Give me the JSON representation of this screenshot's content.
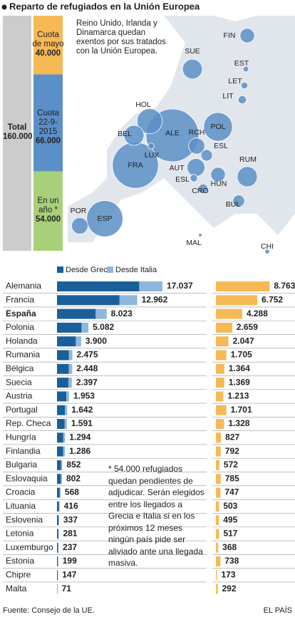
{
  "title": "Reparto de refugiados en la Unión Europea",
  "chart_data": [
    {
      "type": "stacked-column",
      "total": {
        "name": "Total",
        "value": 160000,
        "value_label": "160.000",
        "color": "#cccccc"
      },
      "segments": [
        {
          "name": "Cuota de mayo",
          "value": 40000,
          "value_label": "40.000",
          "color": "#f6b955"
        },
        {
          "name": "Cuota 22-9-2015",
          "value": 66000,
          "value_label": "66.000",
          "color": "#5b8fc7"
        },
        {
          "name": "En un año *",
          "value": 54000,
          "value_label": "54.000",
          "color": "#a8cf7a"
        }
      ],
      "ylim": [
        0,
        160000
      ]
    },
    {
      "type": "bubble-map",
      "note": "Reino Unido, Irlanda y Dinamarca quedan exentos por sus tratados con la Unión Europea.",
      "codes": [
        "ALE",
        "FRA",
        "ESP",
        "POL",
        "HOL",
        "RUM",
        "BEL",
        "SUE",
        "AUT",
        "POR",
        "RCH",
        "HUN",
        "FIN",
        "BUL",
        "ESL",
        "CRO",
        "LIT",
        "ESL",
        "LET",
        "LUX",
        "EST",
        "CHI",
        "MAL"
      ],
      "color": "#5b8fc7"
    },
    {
      "type": "hbar-stacked",
      "categories": [
        "Alemania",
        "Francia",
        "España",
        "Polonia",
        "Holanda",
        "Rumania",
        "Bélgica",
        "Suecia",
        "Austria",
        "Portugal",
        "Rep. Checa",
        "Hungría",
        "Finlandia",
        "Bulgaria",
        "Eslovaquia",
        "Croacia",
        "Lituania",
        "Eslovenia",
        "Letonia",
        "Luxemburgo",
        "Estonia",
        "Chipre",
        "Malta"
      ],
      "series": [
        {
          "name": "Desde Grecia",
          "color": "#1b5f9a",
          "values": [
            13286,
            10108,
            6256,
            3963,
            3041,
            1930,
            1909,
            1869,
            1523,
            1280,
            1241,
            1009,
            1003,
            664,
            625,
            443,
            324,
            263,
            219,
            185,
            155,
            115,
            55
          ]
        },
        {
          "name": "Desde Italia",
          "color": "#8fb7dd",
          "values": [
            3751,
            2854,
            1767,
            1119,
            859,
            545,
            539,
            528,
            430,
            362,
            350,
            285,
            283,
            188,
            177,
            125,
            92,
            74,
            62,
            52,
            44,
            32,
            16
          ]
        }
      ],
      "totals": {
        "values": [
          17037,
          12962,
          8023,
          5082,
          3900,
          2475,
          2448,
          2397,
          1953,
          1642,
          1591,
          1294,
          1286,
          852,
          802,
          568,
          416,
          337,
          281,
          237,
          199,
          147,
          71
        ],
        "value_labels": [
          "17.037",
          "12.962",
          "8.023",
          "5.082",
          "3.900",
          "2.475",
          "2.448",
          "2.397",
          "1.953",
          "1.642",
          "1.591",
          "1.294",
          "1.286",
          "852",
          "802",
          "568",
          "416",
          "337",
          "281",
          "237",
          "199",
          "147",
          "71"
        ]
      },
      "xlim": [
        0,
        17500
      ]
    },
    {
      "type": "bar",
      "values": [
        8763,
        6752,
        4288,
        2659,
        2047,
        1705,
        1364,
        1369,
        1213,
        1701,
        1328,
        827,
        792,
        572,
        785,
        747,
        503,
        495,
        517,
        368,
        738,
        173,
        292
      ],
      "value_labels": [
        "8.763",
        "6.752",
        "4.288",
        "2.659",
        "2.047",
        "1.705",
        "1.364",
        "1.369",
        "1.213",
        "1.701",
        "1.328",
        "827",
        "792",
        "572",
        "785",
        "747",
        "503",
        "495",
        "517",
        "368",
        "738",
        "173",
        "292"
      ],
      "color": "#f6b955",
      "xlim": [
        0,
        10000
      ]
    }
  ],
  "note": "* 54.000 refugiados quedan pendientes de adjudicar. Serán elegidos entre los llegados a Grecia e Italia si en los próximos 12 meses ningún país pide ser aliviado ante una llegada masiva.",
  "source": "Fuente: Consejo de la UE.",
  "brand": "EL PAÍS"
}
